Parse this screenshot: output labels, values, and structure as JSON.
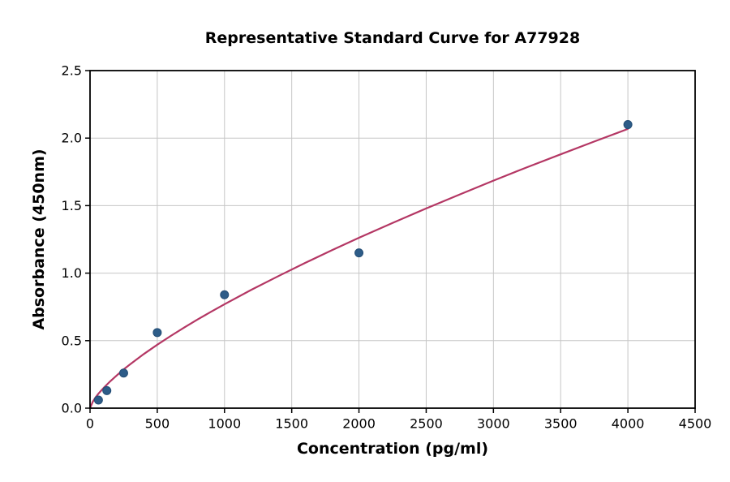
{
  "chart_data": {
    "type": "scatter",
    "title": "Representative Standard Curve for A77928",
    "xlabel": "Concentration (pg/ml)",
    "ylabel": "Absorbance (450nm)",
    "xlim": [
      0,
      4500
    ],
    "ylim": [
      0,
      2.5
    ],
    "grid": true,
    "legend": "none",
    "xticks": {
      "values": [
        0,
        500,
        1000,
        1500,
        2000,
        2500,
        3000,
        3500,
        4000,
        4500
      ],
      "labels": [
        "0",
        "500",
        "1000",
        "1500",
        "2000",
        "2500",
        "3000",
        "3500",
        "4000",
        "4500"
      ]
    },
    "yticks": {
      "values": [
        0,
        0.5,
        1.0,
        1.5,
        2.0,
        2.5
      ],
      "labels": [
        "0.0",
        "0.5",
        "1.0",
        "1.5",
        "2.0",
        "2.5"
      ]
    },
    "points": [
      [
        62.5,
        0.06
      ],
      [
        125,
        0.13
      ],
      [
        250,
        0.26
      ],
      [
        500,
        0.56
      ],
      [
        1000,
        0.84
      ],
      [
        2000,
        1.15
      ],
      [
        4000,
        2.1
      ]
    ],
    "fit_curve": {
      "description": "power-law fit y = 0.00559 * x^0.713",
      "samples": [
        [
          0,
          0
        ],
        [
          20,
          0.047
        ],
        [
          40,
          0.078
        ],
        [
          60,
          0.104
        ],
        [
          80,
          0.127
        ],
        [
          100,
          0.149
        ],
        [
          150,
          0.199
        ],
        [
          200,
          0.244
        ],
        [
          250,
          0.287
        ],
        [
          300,
          0.326
        ],
        [
          400,
          0.401
        ],
        [
          500,
          0.47
        ],
        [
          600,
          0.535
        ],
        [
          700,
          0.597
        ],
        [
          800,
          0.657
        ],
        [
          900,
          0.714
        ],
        [
          1000,
          0.77
        ],
        [
          1200,
          0.877
        ],
        [
          1400,
          0.978
        ],
        [
          1600,
          1.076
        ],
        [
          1800,
          1.17
        ],
        [
          2000,
          1.262
        ],
        [
          2250,
          1.372
        ],
        [
          2500,
          1.479
        ],
        [
          2750,
          1.583
        ],
        [
          3000,
          1.685
        ],
        [
          3250,
          1.784
        ],
        [
          3500,
          1.88
        ],
        [
          3750,
          1.975
        ],
        [
          4000,
          2.068
        ]
      ]
    },
    "colors": {
      "point_fill": "#2d5c88",
      "point_edge": "#234d75",
      "curve": "#b43764",
      "grid": "#c6c6c6",
      "spine": "#000000",
      "text": "#000000",
      "background": "#ffffff"
    }
  }
}
